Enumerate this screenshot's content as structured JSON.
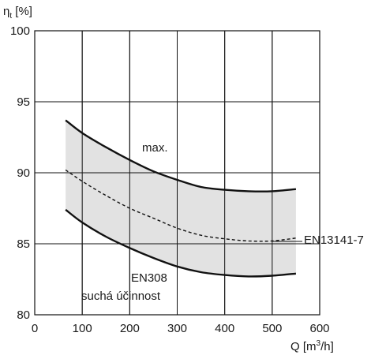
{
  "chart_data": {
    "type": "area",
    "xlabel_parts": {
      "q": "Q [m",
      "sup": "3",
      "unit": "/h]"
    },
    "ylabel_parts": {
      "eta": "η",
      "sub": "t",
      "unit": " [%]"
    },
    "xlim": [
      0,
      600
    ],
    "ylim": [
      80,
      100
    ],
    "x_ticks": [
      0,
      100,
      200,
      300,
      400,
      500,
      600
    ],
    "y_ticks": [
      80,
      85,
      90,
      95,
      100
    ],
    "grid": true,
    "series": [
      {
        "name": "max.",
        "style": "solid",
        "points": [
          [
            65,
            93.7
          ],
          [
            100,
            92.8
          ],
          [
            150,
            91.8
          ],
          [
            200,
            90.9
          ],
          [
            250,
            90.1
          ],
          [
            300,
            89.5
          ],
          [
            350,
            89.0
          ],
          [
            400,
            88.8
          ],
          [
            450,
            88.7
          ],
          [
            500,
            88.7
          ],
          [
            550,
            88.85
          ]
        ]
      },
      {
        "name": "EN13141-7",
        "style": "dashed",
        "points": [
          [
            65,
            90.2
          ],
          [
            100,
            89.4
          ],
          [
            150,
            88.4
          ],
          [
            200,
            87.5
          ],
          [
            250,
            86.8
          ],
          [
            300,
            86.1
          ],
          [
            350,
            85.6
          ],
          [
            400,
            85.35
          ],
          [
            450,
            85.2
          ],
          [
            500,
            85.2
          ],
          [
            550,
            85.4
          ]
        ]
      },
      {
        "name": "EN308",
        "style": "solid",
        "points": [
          [
            65,
            87.4
          ],
          [
            100,
            86.5
          ],
          [
            150,
            85.5
          ],
          [
            200,
            84.7
          ],
          [
            250,
            84.0
          ],
          [
            300,
            83.4
          ],
          [
            350,
            83.0
          ],
          [
            400,
            82.8
          ],
          [
            450,
            82.7
          ],
          [
            500,
            82.75
          ],
          [
            550,
            82.9
          ]
        ]
      }
    ],
    "band_color": "#e2e2e2",
    "line_color": "#111111",
    "annotations": {
      "max": "max.",
      "en13141": "EN13141-7",
      "en308": "EN308",
      "dry_efficiency": "suchá účinnost"
    }
  }
}
